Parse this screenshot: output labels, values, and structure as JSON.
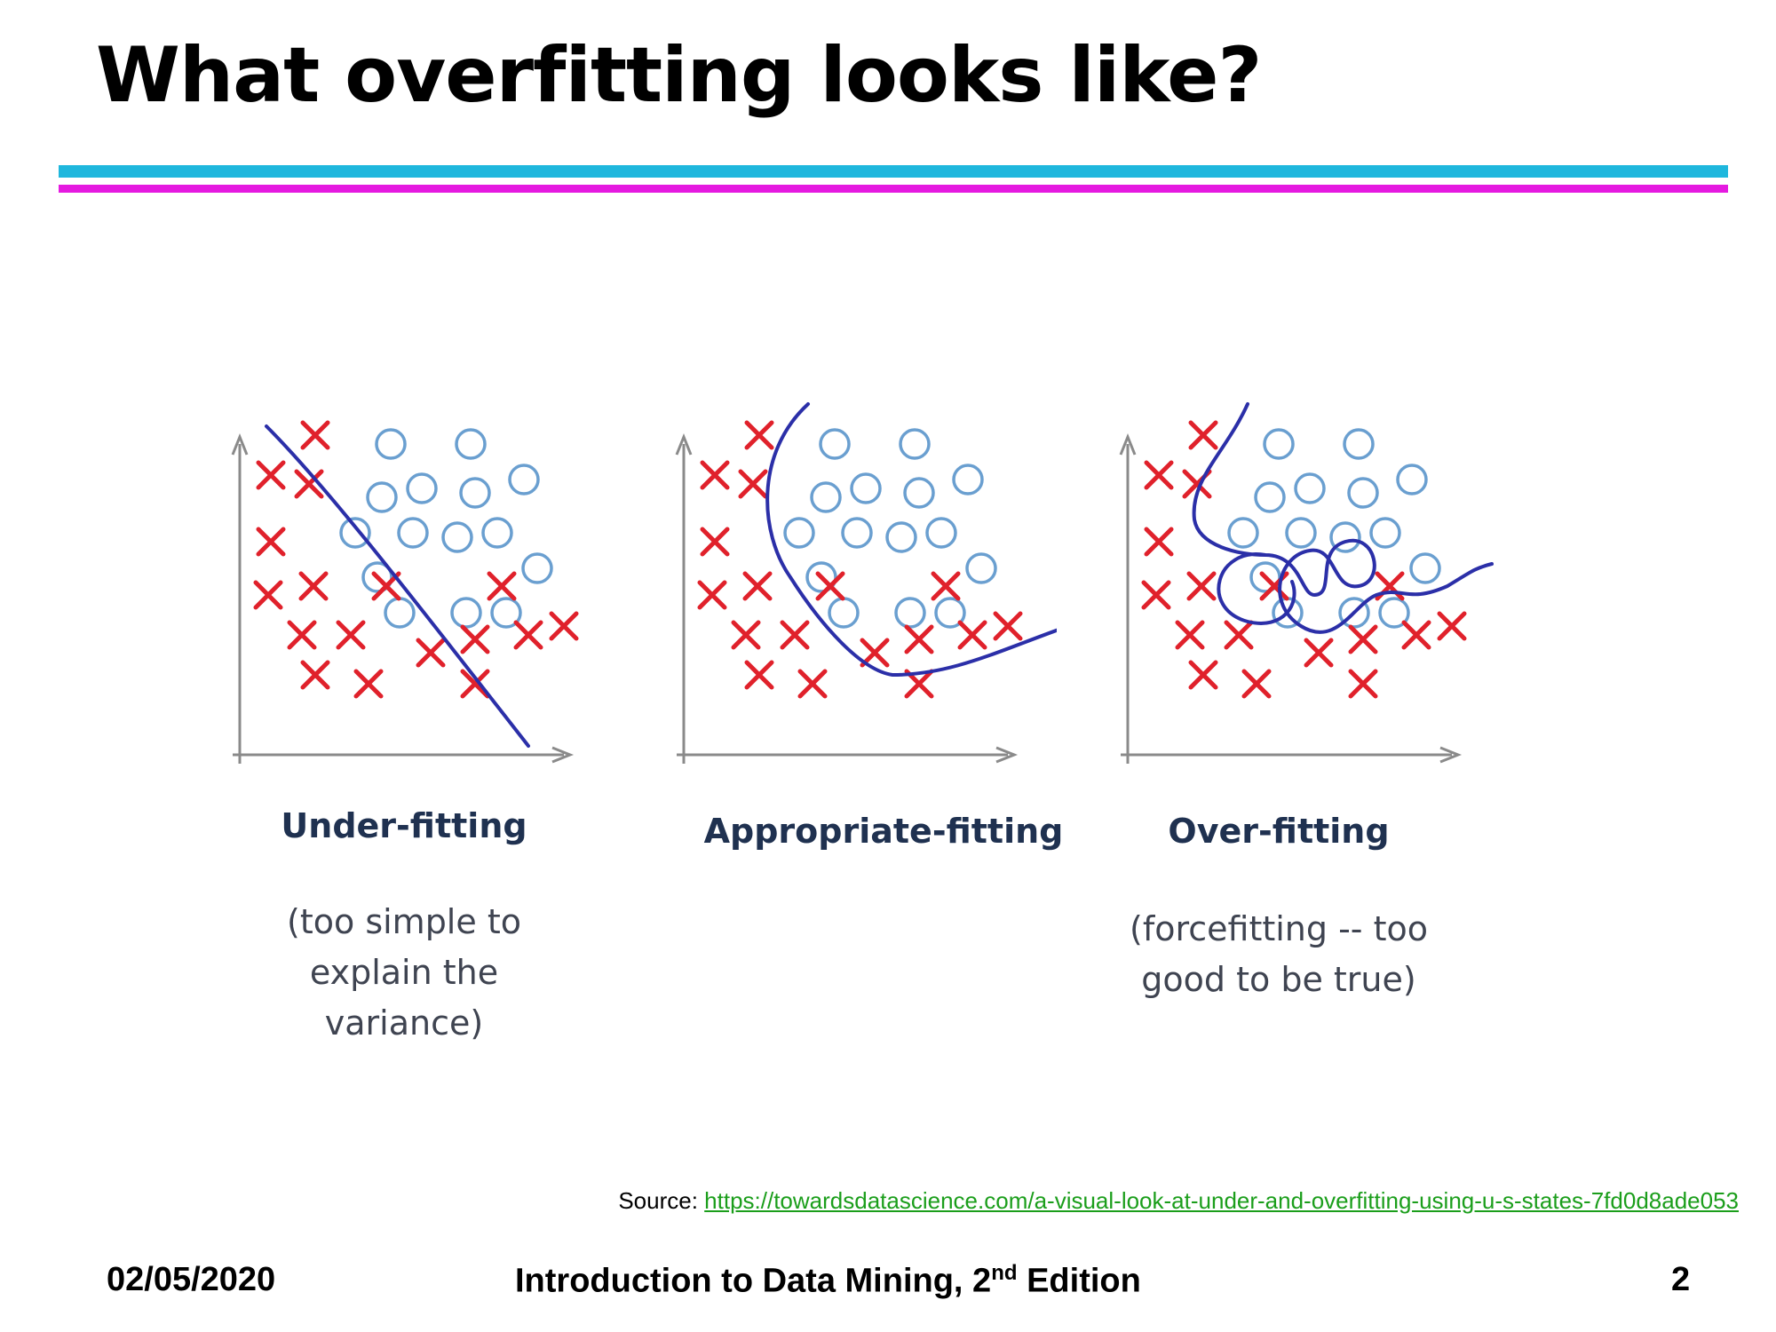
{
  "slide": {
    "title": "What overfitting looks like?",
    "accent_colors": {
      "top_rule": "#1fb7dd",
      "bottom_rule": "#e51ae0"
    }
  },
  "panels": [
    {
      "title": "Under-fitting",
      "note": "(too simple to explain the variance)"
    },
    {
      "title": "Appropriate-fitting",
      "note": ""
    },
    {
      "title": "Over-fitting",
      "note": "(forcefitting -- too good to be true)"
    }
  ],
  "markers": {
    "cross_color": "#e0212b",
    "circle_color": "#6a9fd0",
    "boundary_color": "#2b2fa8",
    "axis_color": "#8a8a8a"
  },
  "source": {
    "label": "Source:",
    "url_text": "https://towardsdatascience.com/a-visual-look-at-under-and-overfitting-using-u-s-states-7fd0d8ade053"
  },
  "footer": {
    "date": "02/05/2020",
    "course_text": "Introduction to Data Mining, 2",
    "course_sup": "nd",
    "course_suffix": " Edition",
    "page_number": "2"
  }
}
